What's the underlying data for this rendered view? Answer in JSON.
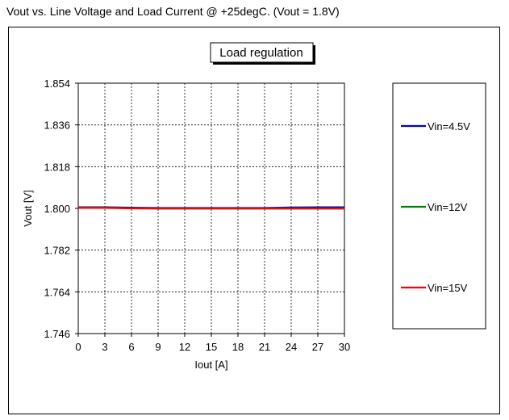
{
  "page_title": "Vout vs. Line Voltage and Load Current @ +25degC. (Vout = 1.8V)",
  "chart_data": {
    "type": "line",
    "title": "Load regulation",
    "xlabel": "Iout [A]",
    "ylabel": "Vout [V]",
    "xlim": [
      0,
      30
    ],
    "ylim": [
      1.746,
      1.854
    ],
    "x_ticks": [
      "0",
      "3",
      "6",
      "9",
      "12",
      "15",
      "18",
      "21",
      "24",
      "27",
      "30"
    ],
    "y_ticks": [
      "1.854",
      "1.836",
      "1.818",
      "1.800",
      "1.782",
      "1.764",
      "1.746"
    ],
    "grid": true,
    "legend_position": "right",
    "x": [
      0,
      3,
      6,
      9,
      12,
      15,
      18,
      21,
      24,
      27,
      30
    ],
    "series": [
      {
        "name": "Vin=4.5V",
        "color": "#0000cc",
        "values": [
          1.8005,
          1.8005,
          1.8003,
          1.8002,
          1.8002,
          1.8002,
          1.8002,
          1.8002,
          1.8004,
          1.8005,
          1.8005
        ]
      },
      {
        "name": "Vin=12V",
        "color": "#008000",
        "values": [
          1.8003,
          1.8003,
          1.8001,
          1.8,
          1.8,
          1.8,
          1.8,
          1.8,
          1.8,
          1.8,
          1.8
        ]
      },
      {
        "name": "Vin=15V",
        "color": "#ff0000",
        "values": [
          1.8002,
          1.8002,
          1.8,
          1.7999,
          1.7999,
          1.7999,
          1.7999,
          1.7999,
          1.7999,
          1.7999,
          1.7999
        ]
      }
    ]
  }
}
